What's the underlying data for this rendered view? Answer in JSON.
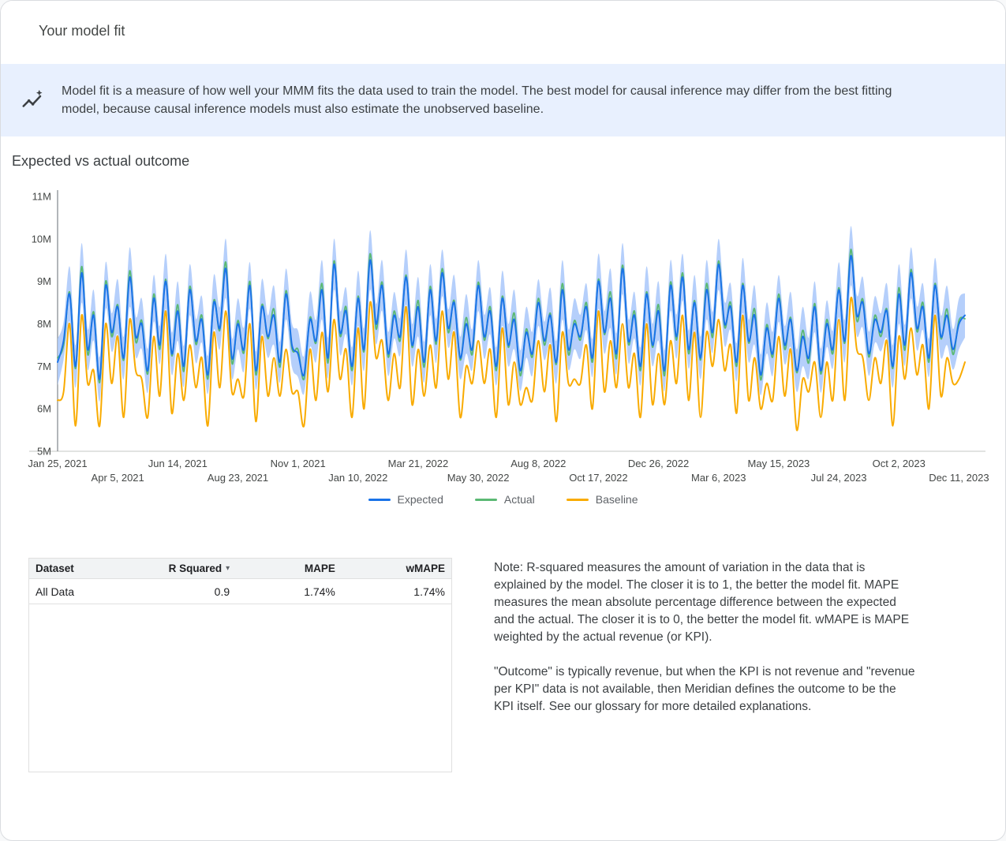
{
  "page": {
    "title": "Your model fit"
  },
  "banner": {
    "icon": "insights-icon",
    "text": "Model fit is a measure of how well your MMM fits the data used to train the model. The best model for causal inference may differ from the best fitting model, because causal inference models must also estimate the unobserved baseline."
  },
  "section": {
    "title": "Expected vs actual outcome"
  },
  "legend": [
    {
      "label": "Expected",
      "color": "#1a73e8"
    },
    {
      "label": "Actual",
      "color": "#5bb974"
    },
    {
      "label": "Baseline",
      "color": "#f9ab00"
    }
  ],
  "chart_data": {
    "type": "line",
    "title": "Expected vs actual outcome",
    "x_unit": "week",
    "n_points": 152,
    "ylim": [
      5,
      11
    ],
    "y_tick_labels": [
      "5M",
      "6M",
      "7M",
      "8M",
      "9M",
      "10M",
      "11M"
    ],
    "x_tick_indices": [
      0,
      10,
      20,
      30,
      40,
      50,
      60,
      70,
      80,
      90,
      100,
      110,
      120,
      130,
      140,
      150
    ],
    "x_tick_labels": [
      "Jan 25, 2021",
      "Apr 5, 2021",
      "Jun 14, 2021",
      "Aug 23, 2021",
      "Nov 1, 2021",
      "Jan 10, 2022",
      "Mar 21, 2022",
      "May 30, 2022",
      "Aug 8, 2022",
      "Oct 17, 2022",
      "Dec 26, 2022",
      "Mar 6, 2023",
      "May 15, 2023",
      "Jul 24, 2023",
      "Oct 2, 2023",
      "Dec 11, 2023"
    ],
    "grid": false,
    "legend_position": "bottom",
    "ci_band": {
      "series": "Expected",
      "color": "#a8c7fa",
      "halfwidth_pattern": [
        0.55,
        0.45,
        0.65,
        0.5,
        0.7,
        0.48,
        0.6,
        0.52
      ]
    },
    "series": [
      {
        "name": "Expected",
        "color": "#1a73e8",
        "values": [
          7.1,
          7.6,
          8.7,
          7.0,
          9.2,
          7.4,
          8.2,
          6.7,
          8.9,
          7.8,
          8.4,
          7.2,
          9.1,
          7.7,
          8.0,
          6.9,
          8.6,
          7.5,
          9.0,
          7.3,
          8.3,
          7.0,
          8.8,
          7.6,
          8.1,
          6.8,
          8.5,
          7.9,
          9.3,
          7.2,
          8.0,
          7.4,
          8.9,
          6.9,
          8.4,
          7.7,
          8.2,
          7.1,
          8.7,
          7.5,
          7.3,
          6.8,
          8.1,
          7.6,
          8.8,
          7.2,
          9.4,
          7.8,
          8.3,
          7.0,
          8.6,
          7.4,
          9.5,
          8.0,
          8.9,
          7.3,
          8.2,
          7.7,
          9.1,
          7.5,
          8.4,
          7.1,
          8.8,
          7.6,
          9.2,
          7.9,
          8.5,
          7.2,
          8.0,
          7.4,
          8.9,
          7.7,
          8.3,
          7.0,
          8.6,
          7.5,
          8.1,
          6.9,
          7.8,
          7.3,
          8.5,
          7.6,
          8.2,
          7.1,
          8.8,
          7.4,
          8.0,
          7.7,
          8.4,
          7.2,
          9.0,
          7.8,
          8.6,
          7.3,
          9.3,
          7.6,
          8.2,
          7.0,
          8.7,
          7.5,
          8.3,
          6.9,
          8.9,
          7.7,
          9.1,
          7.4,
          8.5,
          7.2,
          8.8,
          7.8,
          9.4,
          8.0,
          8.4,
          7.1,
          8.9,
          7.6,
          8.2,
          6.8,
          7.9,
          7.3,
          8.6,
          7.5,
          8.1,
          6.9,
          7.7,
          7.2,
          8.4,
          6.9,
          8.0,
          7.4,
          8.8,
          7.6,
          9.6,
          8.2,
          8.5,
          7.3,
          8.1,
          7.8,
          8.3,
          7.0,
          8.7,
          7.5,
          9.2,
          7.9,
          8.4,
          7.2,
          8.9,
          7.7,
          8.2,
          7.4,
          8.0,
          8.2
        ]
      },
      {
        "name": "Actual",
        "color": "#5bb974",
        "values": [
          7.2,
          7.5,
          8.75,
          6.95,
          9.35,
          7.28,
          8.28,
          6.62,
          9.0,
          7.7,
          8.45,
          7.15,
          9.25,
          7.58,
          8.08,
          6.82,
          8.7,
          7.4,
          9.05,
          7.25,
          8.45,
          6.88,
          8.88,
          7.52,
          8.2,
          6.7,
          8.55,
          7.85,
          9.45,
          7.08,
          8.08,
          7.32,
          9.0,
          6.8,
          8.45,
          7.65,
          8.35,
          6.98,
          8.78,
          7.42,
          7.4,
          6.7,
          8.15,
          7.55,
          8.95,
          7.08,
          9.48,
          7.72,
          8.4,
          6.9,
          8.65,
          7.35,
          9.65,
          7.88,
          8.98,
          7.22,
          8.3,
          7.6,
          9.15,
          7.45,
          8.55,
          6.98,
          8.88,
          7.52,
          9.3,
          7.8,
          8.55,
          7.15,
          8.15,
          7.28,
          8.98,
          7.62,
          8.4,
          6.9,
          8.65,
          7.45,
          8.25,
          6.78,
          7.88,
          7.22,
          8.6,
          7.5,
          8.25,
          7.05,
          8.95,
          7.28,
          8.08,
          7.62,
          8.5,
          7.1,
          9.05,
          7.75,
          8.75,
          7.18,
          9.38,
          7.52,
          8.3,
          6.9,
          8.75,
          7.45,
          8.45,
          6.78,
          8.98,
          7.62,
          9.2,
          7.3,
          8.55,
          7.15,
          8.95,
          7.68,
          9.48,
          7.92,
          8.5,
          7.0,
          8.95,
          7.55,
          8.35,
          6.68,
          7.98,
          7.22,
          8.7,
          7.4,
          8.15,
          6.85,
          7.85,
          7.08,
          8.48,
          6.82,
          8.1,
          7.3,
          8.85,
          7.55,
          9.75,
          8.08,
          8.58,
          7.22,
          8.2,
          7.7,
          8.35,
          6.95,
          8.85,
          7.38,
          9.28,
          7.82,
          8.5,
          7.1,
          8.95,
          7.65,
          8.35,
          7.28,
          8.08,
          8.12
        ]
      },
      {
        "name": "Baseline",
        "color": "#f9ab00",
        "values": [
          6.2,
          6.4,
          8.0,
          5.6,
          8.2,
          6.6,
          6.9,
          5.6,
          8.0,
          6.6,
          7.7,
          5.8,
          8.1,
          6.9,
          6.7,
          5.8,
          7.7,
          6.3,
          8.3,
          5.9,
          7.3,
          6.2,
          7.5,
          6.5,
          7.2,
          5.6,
          7.8,
          6.5,
          8.3,
          6.4,
          6.7,
          6.3,
          8.0,
          5.7,
          7.7,
          6.3,
          7.2,
          6.3,
          7.4,
          6.4,
          6.4,
          5.6,
          7.4,
          6.2,
          7.8,
          6.4,
          8.1,
          6.7,
          7.4,
          5.8,
          7.9,
          6.0,
          8.5,
          7.2,
          7.6,
          6.2,
          7.3,
          6.5,
          8.4,
          6.1,
          7.4,
          6.3,
          7.5,
          6.5,
          8.3,
          6.7,
          7.8,
          5.8,
          7.0,
          6.6,
          7.6,
          6.6,
          7.4,
          5.8,
          7.9,
          6.1,
          7.1,
          6.1,
          6.5,
          6.2,
          7.6,
          6.4,
          7.5,
          5.7,
          7.8,
          6.6,
          6.7,
          6.6,
          7.5,
          6.0,
          8.3,
          6.4,
          7.6,
          6.5,
          8.0,
          6.5,
          7.3,
          5.8,
          8.0,
          6.1,
          7.3,
          6.1,
          7.6,
          6.6,
          8.2,
          6.2,
          7.8,
          5.8,
          7.8,
          7.0,
          8.1,
          6.9,
          7.5,
          5.9,
          8.2,
          6.2,
          7.2,
          6.0,
          6.6,
          6.2,
          7.7,
          6.3,
          7.4,
          5.5,
          6.7,
          6.4,
          7.1,
          5.8,
          7.1,
          6.2,
          8.1,
          6.2,
          8.6,
          7.4,
          7.2,
          6.2,
          7.2,
          6.6,
          7.6,
          5.6,
          7.7,
          6.7,
          7.9,
          6.8,
          7.5,
          6.0,
          8.2,
          6.3,
          7.2,
          6.6,
          6.7,
          7.1
        ]
      }
    ]
  },
  "table": {
    "headers": [
      "Dataset",
      "R Squared",
      "MAPE",
      "wMAPE"
    ],
    "sort_column": "R Squared",
    "sort_indicator": "▾",
    "rows": [
      [
        "All Data",
        "0.9",
        "1.74%",
        "1.74%"
      ]
    ]
  },
  "note": {
    "paragraph1": "Note: R-squared measures the amount of variation in the data that is explained by the model. The closer it is to 1, the better the model fit. MAPE measures the mean absolute percentage difference between the expected and the actual. The closer it is to 0, the better the model fit. wMAPE is MAPE weighted by the actual revenue (or KPI).",
    "paragraph2": "\"Outcome\" is typically revenue, but when the KPI is not revenue and \"revenue per KPI\" data is not available, then Meridian defines the outcome to be the KPI itself. See our glossary for more detailed explanations."
  },
  "colors": {
    "banner_background": "#e8f0fe",
    "table_header_background": "#f1f3f4",
    "expected": "#1a73e8",
    "actual": "#5bb974",
    "baseline": "#f9ab00",
    "confidence_band": "#a8c7fa"
  }
}
